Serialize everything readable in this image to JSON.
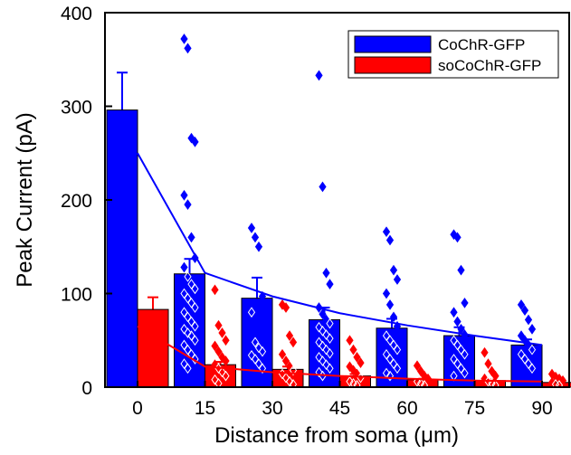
{
  "chart_data": {
    "type": "bar",
    "xlabel": "Distance from soma (μm)",
    "ylabel": "Peak Current (pA)",
    "ylim": [
      0,
      400
    ],
    "yticks": [
      0,
      100,
      200,
      300,
      400
    ],
    "categories": [
      "0",
      "15",
      "30",
      "45",
      "60",
      "75",
      "90"
    ],
    "legend_position": "top-right",
    "series": [
      {
        "name": "CoChR-GFP",
        "color": "#0000ff",
        "values": [
          296,
          121,
          95,
          72,
          63,
          55,
          45
        ],
        "errors": [
          40,
          16,
          22,
          13,
          10,
          9,
          6
        ],
        "points": [
          [],
          [
            372,
            362,
            266,
            262,
            205,
            195,
            160,
            138,
            128,
            118,
            110,
            105,
            100,
            95,
            90,
            85,
            80,
            75,
            70,
            65,
            62,
            58,
            55,
            50,
            45,
            40,
            35,
            30,
            25,
            20
          ],
          [
            170,
            160,
            150,
            97,
            80,
            48,
            42,
            38,
            34,
            30,
            25,
            20
          ],
          [
            333,
            214,
            122,
            110,
            85,
            78,
            72,
            68,
            64,
            60,
            56,
            52,
            48,
            44,
            40,
            36,
            32,
            28,
            24,
            20,
            16,
            12
          ],
          [
            166,
            157,
            125,
            115,
            100,
            88,
            75,
            65,
            55,
            50,
            45,
            40,
            35,
            30,
            25,
            20,
            15,
            12
          ],
          [
            163,
            160,
            125,
            90,
            80,
            70,
            62,
            56,
            50,
            45,
            40,
            35,
            30,
            25,
            20,
            15,
            12
          ],
          [
            88,
            82,
            72,
            62,
            55,
            50,
            45,
            40,
            35,
            30,
            25,
            20
          ]
        ],
        "trend": [
          250,
          122,
          97,
          79,
          66,
          55,
          45
        ]
      },
      {
        "name": "soCoChR-GFP",
        "color": "#ff0000",
        "values": [
          83,
          24,
          19,
          12,
          8,
          7,
          5
        ],
        "errors": [
          13,
          3,
          3,
          2,
          1,
          1,
          1
        ],
        "points": [
          [],
          [
            104,
            66,
            58,
            50,
            44,
            38,
            32,
            28,
            24,
            20,
            16,
            12,
            8,
            4
          ],
          [
            88,
            85,
            55,
            48,
            35,
            28,
            22,
            18,
            14,
            10,
            6,
            3
          ],
          [
            50,
            40,
            32,
            26,
            22,
            18,
            14,
            10,
            6,
            4,
            2
          ],
          [
            23,
            17,
            12,
            9,
            6,
            4,
            2
          ],
          [
            37,
            25,
            17,
            12,
            9,
            6,
            4,
            2
          ],
          [
            14,
            11,
            9,
            7,
            5,
            3,
            2
          ]
        ],
        "trend": [
          65,
          22,
          16,
          12,
          9,
          7,
          6
        ]
      }
    ]
  }
}
